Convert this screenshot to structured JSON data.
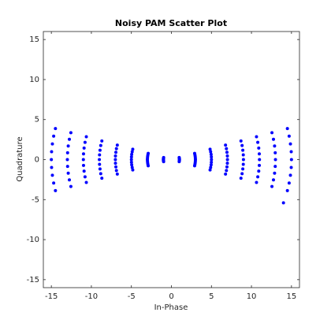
{
  "chart_data": {
    "type": "scatter",
    "title": "Noisy PAM Scatter Plot",
    "x_label": "In-Phase",
    "y_label": "Quadrature",
    "color": "#0000ff",
    "xlim": [
      -16,
      16
    ],
    "ylim": [
      -16,
      16
    ],
    "xticks": [
      -15,
      -10,
      -5,
      0,
      5,
      10,
      15
    ],
    "yticks": [
      -15,
      -10,
      -5,
      0,
      5,
      10,
      15
    ],
    "x": [
      -14.49,
      -14.71,
      -14.87,
      -14.97,
      -15,
      -14.97,
      -14.87,
      -14.71,
      -14.49,
      -12.56,
      -12.75,
      -12.89,
      -12.97,
      -13,
      -12.97,
      -12.89,
      -12.75,
      -12.56,
      -10.63,
      -10.79,
      -10.91,
      -10.98,
      -11,
      -10.98,
      -10.91,
      -10.79,
      -10.63,
      -8.69,
      -8.83,
      -8.92,
      -8.98,
      -9,
      -8.98,
      -8.92,
      -8.83,
      -8.69,
      -6.76,
      -6.87,
      -6.94,
      -6.99,
      -7,
      -6.99,
      -6.94,
      -6.87,
      -6.76,
      -4.83,
      -4.9,
      -4.96,
      -4.99,
      -5,
      -4.99,
      -4.96,
      -4.9,
      -4.83,
      -2.9,
      -2.94,
      -2.97,
      -2.99,
      -3,
      -2.99,
      -2.97,
      -2.94,
      -2.9,
      -0.97,
      -0.98,
      -0.99,
      -1,
      -1,
      -1,
      -0.99,
      -0.98,
      -0.97,
      0.97,
      0.98,
      0.99,
      1,
      1,
      1,
      0.99,
      0.98,
      0.97,
      2.9,
      2.94,
      2.97,
      2.99,
      3,
      2.99,
      2.97,
      2.94,
      2.9,
      4.83,
      4.9,
      4.96,
      4.99,
      5,
      4.99,
      4.96,
      4.9,
      4.83,
      6.76,
      6.87,
      6.94,
      6.99,
      7,
      6.99,
      6.94,
      6.87,
      6.76,
      8.69,
      8.83,
      8.92,
      8.98,
      9,
      8.98,
      8.92,
      8.83,
      8.69,
      10.63,
      10.79,
      10.91,
      10.98,
      11,
      10.98,
      10.91,
      10.79,
      10.63,
      12.56,
      12.75,
      12.89,
      12.97,
      13,
      12.97,
      12.89,
      12.75,
      12.56,
      14.49,
      14.71,
      14.87,
      14.97,
      15,
      14.97,
      14.87,
      14.71,
      14.49,
      14
    ],
    "y": [
      -3.88,
      -2.93,
      -1.96,
      -0.98,
      0,
      0.98,
      1.96,
      2.93,
      3.88,
      -3.36,
      -2.54,
      -1.7,
      -0.85,
      0,
      0.85,
      1.7,
      2.54,
      3.36,
      -2.85,
      -2.15,
      -1.44,
      -0.72,
      0,
      0.72,
      1.44,
      2.15,
      2.85,
      -2.33,
      -1.76,
      -1.17,
      -0.59,
      0,
      0.59,
      1.17,
      1.76,
      2.33,
      -1.81,
      -1.37,
      -0.91,
      -0.46,
      0,
      0.46,
      0.91,
      1.37,
      1.81,
      -1.29,
      -0.98,
      -0.65,
      -0.33,
      0,
      0.33,
      0.65,
      0.98,
      1.29,
      -0.78,
      -0.59,
      -0.39,
      -0.2,
      0,
      0.2,
      0.39,
      0.59,
      0.78,
      -0.26,
      -0.2,
      -0.13,
      -0.07,
      0,
      0.07,
      0.13,
      0.2,
      0.26,
      -0.26,
      -0.2,
      -0.13,
      -0.07,
      0,
      0.07,
      0.13,
      0.2,
      0.26,
      -0.78,
      -0.59,
      -0.39,
      -0.2,
      0,
      0.2,
      0.39,
      0.59,
      0.78,
      -1.29,
      -0.98,
      -0.65,
      -0.33,
      0,
      0.33,
      0.65,
      0.98,
      1.29,
      -1.81,
      -1.37,
      -0.91,
      -0.46,
      0,
      0.46,
      0.91,
      1.37,
      1.81,
      -2.33,
      -1.76,
      -1.17,
      -0.59,
      0,
      0.59,
      1.17,
      1.76,
      2.33,
      -2.85,
      -2.15,
      -1.44,
      -0.72,
      0,
      0.72,
      1.44,
      2.15,
      2.85,
      -3.36,
      -2.54,
      -1.7,
      -0.85,
      0,
      0.85,
      1.7,
      2.54,
      3.36,
      -3.88,
      -2.93,
      -1.96,
      -0.98,
      0,
      0.98,
      1.96,
      2.93,
      3.88,
      -5.4
    ]
  }
}
